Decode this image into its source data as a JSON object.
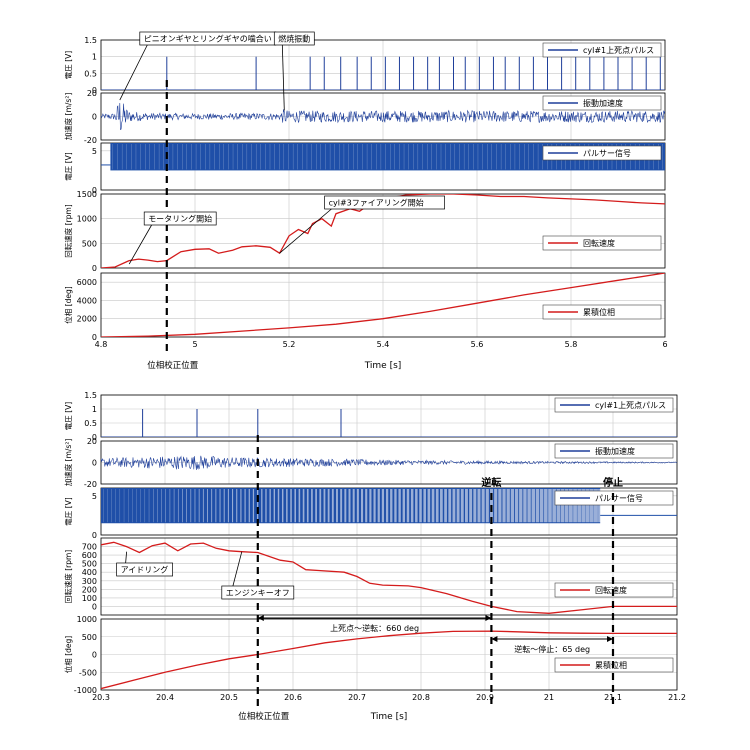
{
  "colors": {
    "pulse": "#1f3f9a",
    "accel": "#1f3f9a",
    "pulser": "#1f4fa8",
    "speed": "#d41c1c",
    "pos": "#d41c1c",
    "grid": "#c8c8c8",
    "axis": "#000000",
    "marker": "#000000"
  },
  "chart_data": [
    {
      "id": "top",
      "type": "line",
      "xlabel": "Time [s]",
      "xlim": [
        4.8,
        6.0
      ],
      "xticks": [
        4.8,
        5.0,
        5.2,
        5.4,
        5.6,
        5.8,
        6.0
      ],
      "xtick_labels": [
        "4.8",
        "5",
        "5.2",
        "5.4",
        "5.6",
        "5.8",
        "6"
      ],
      "marker_label": "位相校正位置",
      "marker_x": 4.94,
      "panels": [
        {
          "key": "tdc",
          "kind": "pulse",
          "ylabel": "電圧 [V]",
          "ylim": [
            0,
            1.5
          ],
          "yticks": [
            0,
            0.5,
            1,
            1.5
          ],
          "ytick_labels": [
            "0",
            "0.5",
            "1",
            "1.5"
          ],
          "legend": "cyl#1上死点パルス",
          "pulses": [
            4.94,
            5.13,
            5.245,
            5.275,
            5.31,
            5.345,
            5.375,
            5.405,
            5.435,
            5.465,
            5.495,
            5.52,
            5.55,
            5.575,
            5.605,
            5.635,
            5.66,
            5.69,
            5.72,
            5.75,
            5.78,
            5.81,
            5.84,
            5.87,
            5.9,
            5.93,
            5.96,
            5.99
          ]
        },
        {
          "key": "accel",
          "kind": "noise",
          "ylabel": "加速度 [m/s²]",
          "ylim": [
            -20,
            20
          ],
          "yticks": [
            -20,
            0,
            20
          ],
          "ytick_labels": [
            "-20",
            "0",
            "20"
          ],
          "legend": "振動加速度",
          "envelope": [
            [
              4.8,
              2
            ],
            [
              4.83,
              3
            ],
            [
              4.84,
              18
            ],
            [
              4.85,
              10
            ],
            [
              4.86,
              5
            ],
            [
              4.9,
              3
            ],
            [
              5.0,
              2.5
            ],
            [
              5.18,
              3
            ],
            [
              5.19,
              7
            ],
            [
              5.2,
              5
            ],
            [
              5.4,
              5
            ],
            [
              5.6,
              5
            ],
            [
              6.0,
              5
            ]
          ]
        },
        {
          "key": "pulser",
          "kind": "band",
          "ylabel": "電圧 [V]",
          "ylim": [
            0,
            6
          ],
          "yticks": [
            0,
            5
          ],
          "ytick_labels": [
            "0",
            "5"
          ],
          "legend": "パルサー信号",
          "band_low": 2.5,
          "band_high": 6.0,
          "idle_value": 3.2,
          "band_start": 4.82
        },
        {
          "key": "speed",
          "kind": "line",
          "ylabel": "回転速度 [rpm]",
          "ylim": [
            0,
            1500
          ],
          "yticks": [
            0,
            500,
            1000,
            1500
          ],
          "ytick_labels": [
            "0",
            "500",
            "1000",
            "1500"
          ],
          "legend": "回転速度",
          "x": [
            4.8,
            4.83,
            4.86,
            4.88,
            4.9,
            4.92,
            4.94,
            4.97,
            5.0,
            5.03,
            5.05,
            5.08,
            5.1,
            5.13,
            5.16,
            5.18,
            5.2,
            5.22,
            5.24,
            5.25,
            5.27,
            5.29,
            5.3,
            5.33,
            5.35,
            5.38,
            5.4,
            5.45,
            5.5,
            5.55,
            5.6,
            5.65,
            5.7,
            5.75,
            5.8,
            5.85,
            5.9,
            5.95,
            6.0
          ],
          "y": [
            0,
            20,
            150,
            180,
            160,
            130,
            150,
            330,
            380,
            390,
            300,
            360,
            430,
            450,
            420,
            300,
            650,
            780,
            700,
            900,
            1000,
            850,
            1100,
            1200,
            1150,
            1350,
            1400,
            1480,
            1500,
            1500,
            1480,
            1450,
            1450,
            1420,
            1400,
            1380,
            1350,
            1320,
            1300
          ]
        },
        {
          "key": "pos",
          "kind": "line",
          "ylabel": "位相 [deg]",
          "ylim": [
            0,
            7000
          ],
          "yticks": [
            0,
            2000,
            4000,
            6000
          ],
          "ytick_labels": [
            "0",
            "2000",
            "4000",
            "6000"
          ],
          "legend": "累積位相",
          "x": [
            4.8,
            4.9,
            5.0,
            5.1,
            5.2,
            5.3,
            5.4,
            5.5,
            5.6,
            5.7,
            5.8,
            5.9,
            6.0
          ],
          "y": [
            0,
            100,
            300,
            650,
            1000,
            1400,
            2000,
            2800,
            3700,
            4600,
            5400,
            6200,
            7000
          ]
        }
      ],
      "annotations": [
        {
          "text": "ピニオンギヤとリングギヤの噛合い",
          "target": [
            4.84,
            14
          ],
          "panel": "accel"
        },
        {
          "text": "燃焼振動",
          "target": [
            5.19,
            5
          ],
          "panel": "accel"
        },
        {
          "text": "モータリング開始",
          "target": [
            4.86,
            80
          ],
          "panel": "speed"
        },
        {
          "text": "cyl#3ファイアリング開始",
          "target": [
            5.18,
            300
          ],
          "panel": "speed"
        }
      ]
    },
    {
      "id": "bottom",
      "type": "line",
      "xlabel": "Time [s]",
      "xlim": [
        20.3,
        21.2
      ],
      "xticks": [
        20.3,
        20.4,
        20.5,
        20.6,
        20.7,
        20.8,
        20.9,
        21.0,
        21.1,
        21.2
      ],
      "xtick_labels": [
        "20.3",
        "20.4",
        "20.5",
        "20.6",
        "20.7",
        "20.8",
        "20.9",
        "21",
        "21.1",
        "21.2"
      ],
      "marker_label": "位相校正位置",
      "marker_x": 20.545,
      "extra_markers": [
        {
          "x": 20.91,
          "label": "逆転"
        },
        {
          "x": 21.1,
          "label": "停止"
        }
      ],
      "panels": [
        {
          "key": "tdc",
          "kind": "pulse",
          "ylabel": "電圧 [V]",
          "ylim": [
            0,
            1.5
          ],
          "yticks": [
            0,
            0.5,
            1,
            1.5
          ],
          "ytick_labels": [
            "0",
            "0.5",
            "1",
            "1.5"
          ],
          "legend": "cyl#1上死点パルス",
          "pulses": [
            20.365,
            20.45,
            20.545,
            20.675
          ]
        },
        {
          "key": "accel",
          "kind": "noise",
          "ylabel": "加速度 [m/s²]",
          "ylim": [
            -20,
            20
          ],
          "yticks": [
            -20,
            0,
            20
          ],
          "ytick_labels": [
            "-20",
            "0",
            "20"
          ],
          "legend": "振動加速度",
          "envelope": [
            [
              20.3,
              4
            ],
            [
              20.4,
              6
            ],
            [
              20.45,
              7
            ],
            [
              20.5,
              5
            ],
            [
              20.6,
              4
            ],
            [
              20.7,
              3
            ],
            [
              20.8,
              2
            ],
            [
              20.9,
              1.5
            ],
            [
              21.0,
              1
            ],
            [
              21.2,
              0.5
            ]
          ]
        },
        {
          "key": "pulser",
          "kind": "band",
          "ylabel": "電圧 [V]",
          "ylim": [
            0,
            6
          ],
          "yticks": [
            0,
            5
          ],
          "ytick_labels": [
            "0",
            "5"
          ],
          "legend": "パルサー信号",
          "band_low": 1.5,
          "band_high": 6.0,
          "idle_value": 2.5,
          "band_start": 20.3,
          "band_end": 21.08
        },
        {
          "key": "speed",
          "kind": "line",
          "ylabel": "回転速度 [rpm]",
          "ylim": [
            -100,
            800
          ],
          "yticks": [
            0,
            100,
            200,
            300,
            400,
            500,
            600,
            700
          ],
          "ytick_labels": [
            "0",
            "100",
            "200",
            "300",
            "400",
            "500",
            "600",
            "700"
          ],
          "legend": "回転速度",
          "x": [
            20.3,
            20.32,
            20.34,
            20.36,
            20.38,
            20.4,
            20.42,
            20.44,
            20.46,
            20.48,
            20.5,
            20.52,
            20.545,
            20.58,
            20.6,
            20.62,
            20.64,
            20.68,
            20.7,
            20.72,
            20.74,
            20.78,
            20.8,
            20.84,
            20.88,
            20.91,
            20.95,
            21.0,
            21.05,
            21.1,
            21.15,
            21.2
          ],
          "y": [
            720,
            750,
            700,
            630,
            710,
            740,
            650,
            730,
            740,
            680,
            650,
            640,
            630,
            540,
            520,
            430,
            420,
            400,
            350,
            270,
            250,
            240,
            220,
            150,
            60,
            0,
            -60,
            -80,
            -40,
            0,
            0,
            0
          ]
        },
        {
          "key": "pos",
          "kind": "line",
          "ylabel": "位相 [deg]",
          "ylim": [
            -1000,
            1000
          ],
          "yticks": [
            -1000,
            -500,
            0,
            500,
            1000
          ],
          "ytick_labels": [
            "-1000",
            "-500",
            "0",
            "500",
            "1000"
          ],
          "legend": "累積位相",
          "x": [
            20.3,
            20.35,
            20.4,
            20.45,
            20.5,
            20.545,
            20.6,
            20.65,
            20.7,
            20.75,
            20.8,
            20.85,
            20.91,
            20.95,
            21.0,
            21.05,
            21.1,
            21.2
          ],
          "y": [
            -960,
            -730,
            -500,
            -300,
            -120,
            0,
            170,
            330,
            440,
            530,
            600,
            650,
            660,
            640,
            610,
            600,
            595,
            595
          ]
        }
      ],
      "annotations": [
        {
          "text": "アイドリング",
          "target": [
            20.34,
            640
          ],
          "panel": "speed"
        },
        {
          "text": "エンジンキーオフ",
          "target": [
            20.52,
            640
          ],
          "panel": "speed"
        }
      ],
      "spans": [
        {
          "x1": 20.545,
          "x2": 20.91,
          "text": "上死点～逆転：660 deg"
        },
        {
          "x1": 20.91,
          "x2": 21.1,
          "text": "逆転～停止：65 deg"
        }
      ]
    }
  ]
}
